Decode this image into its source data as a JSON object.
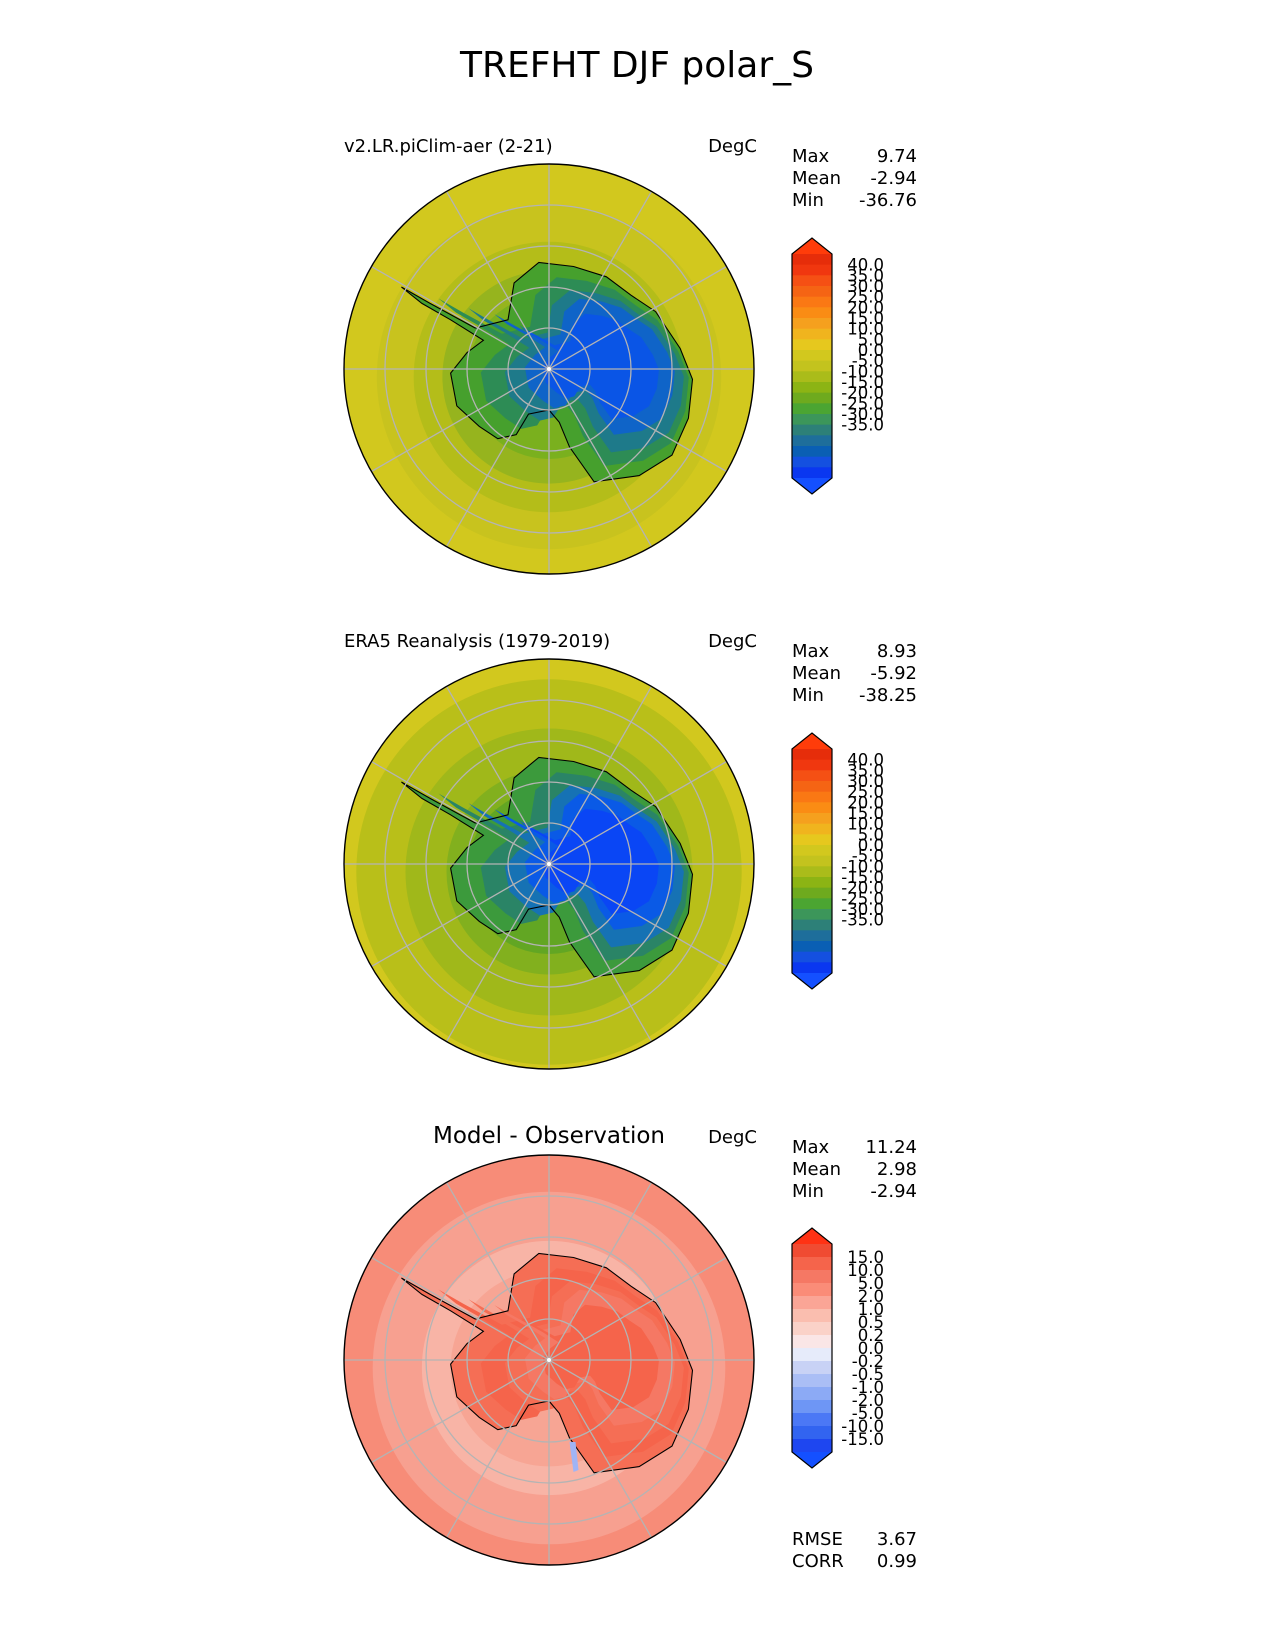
{
  "title": "TREFHT DJF polar_S",
  "panels": [
    {
      "id": "test",
      "left_title": "v2.LR.piClim-aer (2-21)",
      "units": "DegC",
      "stats": [
        {
          "label": "Max",
          "value": "9.74"
        },
        {
          "label": "Mean",
          "value": "-2.94"
        },
        {
          "label": "Min",
          "value": "-36.76"
        }
      ],
      "colorbar": {
        "ticks": [
          "40.0",
          "35.0",
          "30.0",
          "25.0",
          "20.0",
          "15.0",
          "10.0",
          "5.0",
          "0.0",
          "-5.0",
          "-10.0",
          "-15.0",
          "-20.0",
          "-25.0",
          "-30.0",
          "-35.0"
        ],
        "colors": [
          "#0a37f0",
          "#1450e0",
          "#0a5fb4",
          "#1e6e9b",
          "#2d8078",
          "#3c965a",
          "#4ba532",
          "#6eaa1e",
          "#8cb414",
          "#aabc1a",
          "#c3c31e",
          "#d2c81e",
          "#e6c81e",
          "#f0b41e",
          "#f5a01e",
          "#fa8c14",
          "#fa7814",
          "#f56414",
          "#f55014",
          "#f0370f",
          "#e62d0a"
        ],
        "low_color": "#1450ff",
        "high_color": "#ff3c0a"
      },
      "map": {
        "ocean_rings": [
          {
            "r": 1.0,
            "color": "#d2c81e"
          },
          {
            "r": 0.84,
            "color": "#c8c31e"
          },
          {
            "r": 0.66,
            "color": "#b4bd19"
          },
          {
            "r": 0.52,
            "color": "#96b41e"
          },
          {
            "r": 0.4,
            "color": "#7ab01e"
          }
        ],
        "land": [
          "#46a02d",
          "#2d8c55",
          "#1e7a8a",
          "#0f64c8",
          "#0a55e6"
        ]
      }
    },
    {
      "id": "ref",
      "left_title": "ERA5 Reanalysis (1979-2019)",
      "units": "DegC",
      "stats": [
        {
          "label": "Max",
          "value": "8.93"
        },
        {
          "label": "Mean",
          "value": "-5.92"
        },
        {
          "label": "Min",
          "value": "-38.25"
        }
      ],
      "colorbar": {
        "ticks": [
          "40.0",
          "35.0",
          "30.0",
          "25.0",
          "20.0",
          "15.0",
          "10.0",
          "5.0",
          "0.0",
          "-5.0",
          "-10.0",
          "-15.0",
          "-20.0",
          "-25.0",
          "-30.0",
          "-35.0"
        ],
        "colors": [
          "#0a37f0",
          "#1450e0",
          "#0a5fb4",
          "#1e6e9b",
          "#2d8078",
          "#3c965a",
          "#4ba532",
          "#6eaa1e",
          "#8cb414",
          "#aabc1a",
          "#c3c31e",
          "#d2c81e",
          "#e6c81e",
          "#f0b41e",
          "#f5a01e",
          "#fa8c14",
          "#fa7814",
          "#f56414",
          "#f55014",
          "#f0370f",
          "#e62d0a"
        ],
        "low_color": "#1450ff",
        "high_color": "#ff3c0a"
      },
      "map": {
        "ocean_rings": [
          {
            "r": 1.0,
            "color": "#d2c81e"
          },
          {
            "r": 0.94,
            "color": "#b9bf19"
          },
          {
            "r": 0.7,
            "color": "#a0b81a"
          },
          {
            "r": 0.5,
            "color": "#82b01e"
          },
          {
            "r": 0.4,
            "color": "#62a623"
          }
        ],
        "land": [
          "#3c9a3c",
          "#2a8466",
          "#1672b4",
          "#0a5ae6",
          "#0a46f5"
        ]
      }
    },
    {
      "id": "diff",
      "left_title": "",
      "center_title": "Model - Observation",
      "units": "DegC",
      "stats": [
        {
          "label": "Max",
          "value": "11.24"
        },
        {
          "label": "Mean",
          "value": "2.98"
        },
        {
          "label": "Min",
          "value": "-2.94"
        }
      ],
      "colorbar": {
        "ticks": [
          "15.0",
          "10.0",
          "5.0",
          "2.0",
          "1.0",
          "0.5",
          "0.2",
          "0.0",
          "-0.2",
          "-0.5",
          "-1.0",
          "-2.0",
          "-5.0",
          "-10.0",
          "-15.0"
        ],
        "colors": [
          "#1e46f0",
          "#3264f0",
          "#4b78f5",
          "#6e96f5",
          "#8caaf5",
          "#aabef5",
          "#c8d2f5",
          "#e6ebfa",
          "#fae6e6",
          "#fad2c8",
          "#fabeaf",
          "#faa596",
          "#fa8c78",
          "#f57864",
          "#f5644b",
          "#f04b32"
        ],
        "low_color": "#1450ff",
        "high_color": "#ff3214"
      },
      "map": {
        "ocean_rings": [
          {
            "r": 1.0,
            "color": "#f78c78"
          },
          {
            "r": 0.86,
            "color": "#f7a090"
          },
          {
            "r": 0.62,
            "color": "#f8b4a6"
          },
          {
            "r": 0.48,
            "color": "#f7a594"
          }
        ],
        "land": [
          "#f56e55",
          "#f5644b",
          "#f56e55",
          "#f57864",
          "#f5644b"
        ]
      },
      "extra_stats": [
        {
          "label": "RMSE",
          "value": "3.67"
        },
        {
          "label": "CORR",
          "value": "0.99"
        }
      ]
    }
  ]
}
